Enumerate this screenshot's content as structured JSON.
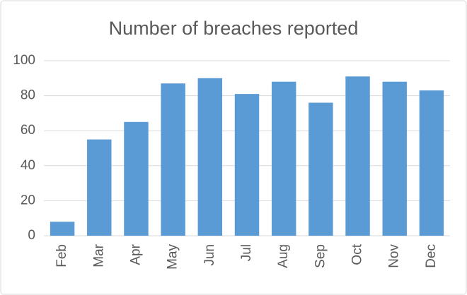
{
  "chart_data": {
    "type": "bar",
    "title": "Number of breaches reported",
    "categories": [
      "Feb",
      "Mar",
      "Apr",
      "May",
      "Jun",
      "Jul",
      "Aug",
      "Sep",
      "Oct",
      "Nov",
      "Dec"
    ],
    "values": [
      8,
      55,
      65,
      87,
      90,
      81,
      88,
      76,
      91,
      88,
      83
    ],
    "color": "#5b9bd5",
    "ylim": [
      0,
      100
    ],
    "yticks": [
      0,
      20,
      40,
      60,
      80,
      100
    ],
    "grid": true
  }
}
